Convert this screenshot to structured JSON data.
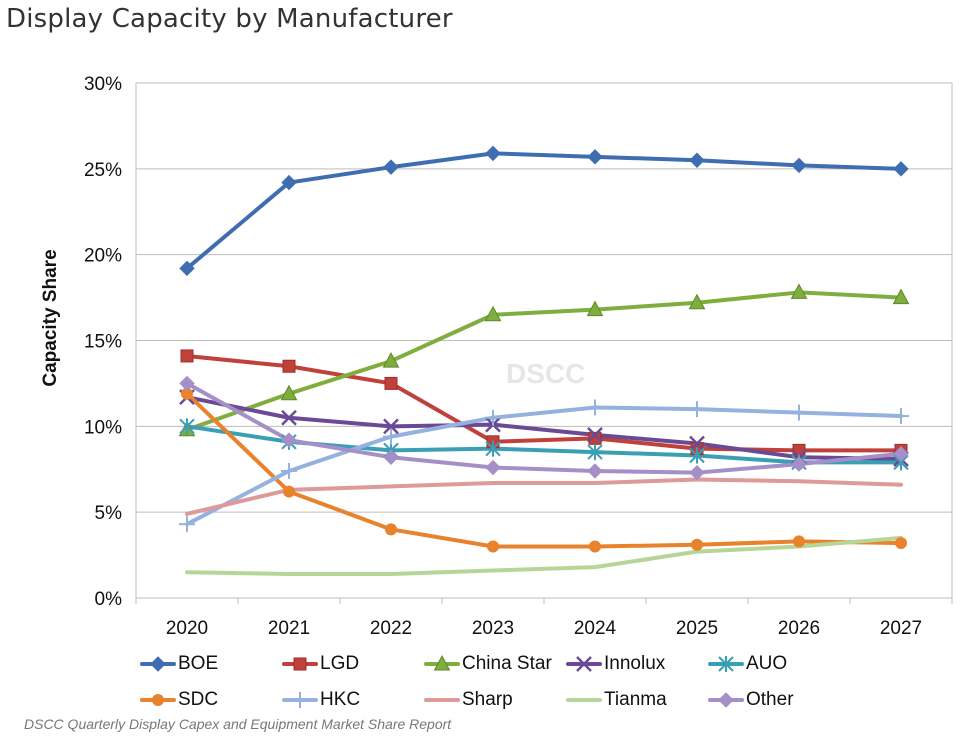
{
  "title": "Display Capacity by Manufacturer",
  "watermark": "DSCC",
  "source": "DSCC Quarterly Display Capex and Equipment Market Share Report",
  "colors": {
    "BOE": "#3f6db2",
    "LGD": "#c0413a",
    "China Star": "#7fae3e",
    "Innolux": "#6a4a94",
    "AUO": "#3a9fb5",
    "SDC": "#e8822d",
    "HKC": "#95b1de",
    "Sharp": "#dd9a98",
    "Tianma": "#b7d596",
    "Other": "#a48fc9"
  },
  "chart_data": {
    "type": "line",
    "title": "Display Capacity by Manufacturer",
    "xlabel": "",
    "ylabel": "Capacity Share",
    "x": [
      "2020",
      "2021",
      "2022",
      "2023",
      "2024",
      "2025",
      "2026",
      "2027"
    ],
    "ylim": [
      0,
      30
    ],
    "yticks": [
      "0%",
      "5%",
      "10%",
      "15%",
      "20%",
      "25%",
      "30%"
    ],
    "grid": true,
    "legend_placement": "bottom",
    "series": [
      {
        "name": "BOE",
        "marker": "diamond",
        "values": [
          19.2,
          24.2,
          25.1,
          25.9,
          25.7,
          25.5,
          25.2,
          25.0
        ]
      },
      {
        "name": "LGD",
        "marker": "square",
        "values": [
          14.1,
          13.5,
          12.5,
          9.1,
          9.3,
          8.7,
          8.6,
          8.6
        ]
      },
      {
        "name": "China Star",
        "marker": "triangle",
        "values": [
          9.8,
          11.9,
          13.8,
          16.5,
          16.8,
          17.2,
          17.8,
          17.5
        ]
      },
      {
        "name": "Innolux",
        "marker": "x",
        "values": [
          11.7,
          10.5,
          10.0,
          10.1,
          9.5,
          9.0,
          8.2,
          8.1
        ]
      },
      {
        "name": "AUO",
        "marker": "star",
        "values": [
          10.0,
          9.1,
          8.6,
          8.7,
          8.5,
          8.3,
          7.9,
          7.9
        ]
      },
      {
        "name": "SDC",
        "marker": "circle",
        "values": [
          11.9,
          6.2,
          4.0,
          3.0,
          3.0,
          3.1,
          3.3,
          3.2
        ]
      },
      {
        "name": "HKC",
        "marker": "plus",
        "values": [
          4.3,
          7.4,
          9.4,
          10.5,
          11.1,
          11.0,
          10.8,
          10.6
        ]
      },
      {
        "name": "Sharp",
        "marker": "none",
        "values": [
          4.9,
          6.3,
          6.5,
          6.7,
          6.7,
          6.9,
          6.8,
          6.6
        ]
      },
      {
        "name": "Tianma",
        "marker": "none",
        "values": [
          1.5,
          1.4,
          1.4,
          1.6,
          1.8,
          2.7,
          3.0,
          3.5
        ]
      },
      {
        "name": "Other",
        "marker": "diamond",
        "values": [
          12.5,
          9.2,
          8.2,
          7.6,
          7.4,
          7.3,
          7.8,
          8.4
        ]
      }
    ]
  }
}
